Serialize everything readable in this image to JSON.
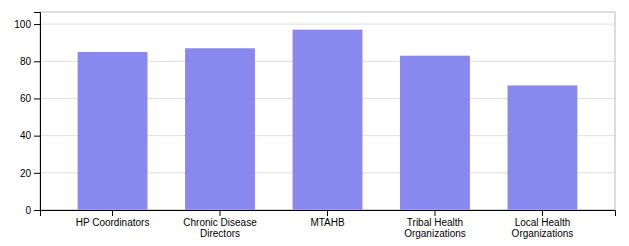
{
  "chart_data": {
    "type": "bar",
    "categories": [
      "HP Coordinators",
      "Chronic Disease\nDirectors",
      "MTAHB",
      "Tribal Health\nOrganizations",
      "Local Health\nOrganizations"
    ],
    "values": [
      85,
      87,
      97,
      83,
      67
    ],
    "color": "#8888EE",
    "ylim": [
      0,
      106.5
    ],
    "yticks": [
      0,
      20,
      40,
      60,
      80,
      100
    ],
    "grid": true
  }
}
